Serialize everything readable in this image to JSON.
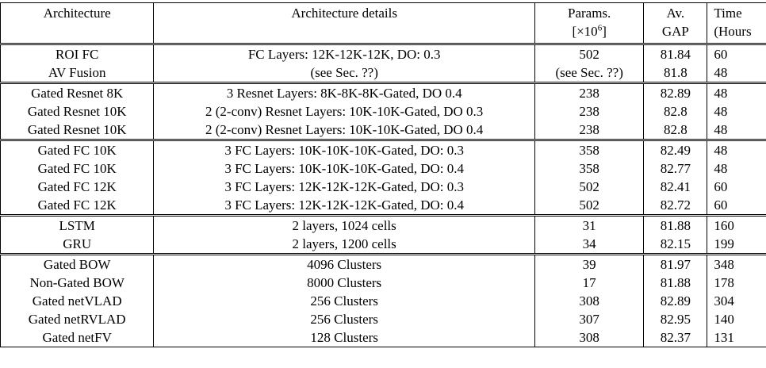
{
  "header": {
    "architecture": "Architecture",
    "details": "Architecture details",
    "params_line1": "Params.",
    "params_line2": "[×10",
    "params_sup": "6",
    "params_close": "]",
    "gap_line1": "Av.",
    "gap_line2": "GAP",
    "time_line1": "Time",
    "time_line2": "(Hours"
  },
  "groups": [
    [
      {
        "arch": "ROI FC",
        "details": "FC Layers: 12K-12K-12K, DO: 0.3",
        "params": "502",
        "gap": "81.84",
        "time": "60"
      },
      {
        "arch": "AV Fusion",
        "details": "(see Sec. ??)",
        "params": "(see Sec. ??)",
        "gap": "81.8",
        "time": "48"
      }
    ],
    [
      {
        "arch": "Gated Resnet 8K",
        "details": "3 Resnet Layers: 8K-8K-8K-Gated, DO 0.4",
        "params": "238",
        "gap": "82.89",
        "time": "48"
      },
      {
        "arch": "Gated Resnet 10K",
        "details": "2 (2-conv) Resnet Layers: 10K-10K-Gated, DO 0.3",
        "params": "238",
        "gap": "82.8",
        "time": "48"
      },
      {
        "arch": "Gated Resnet 10K",
        "details": "2 (2-conv) Resnet Layers: 10K-10K-Gated, DO 0.4",
        "params": "238",
        "gap": "82.8",
        "time": "48"
      }
    ],
    [
      {
        "arch": "Gated FC 10K",
        "details": "3 FC Layers: 10K-10K-10K-Gated, DO: 0.3",
        "params": "358",
        "gap": "82.49",
        "time": "48"
      },
      {
        "arch": "Gated FC 10K",
        "details": "3 FC Layers: 10K-10K-10K-Gated, DO: 0.4",
        "params": "358",
        "gap": "82.77",
        "time": "48"
      },
      {
        "arch": "Gated FC 12K",
        "details": "3 FC Layers: 12K-12K-12K-Gated, DO: 0.3",
        "params": "502",
        "gap": "82.41",
        "time": "60"
      },
      {
        "arch": "Gated FC 12K",
        "details": "3 FC Layers: 12K-12K-12K-Gated, DO: 0.4",
        "params": "502",
        "gap": "82.72",
        "time": "60"
      }
    ],
    [
      {
        "arch": "LSTM",
        "details": "2 layers, 1024 cells",
        "params": "31",
        "gap": "81.88",
        "time": "160"
      },
      {
        "arch": "GRU",
        "details": "2 layers, 1200 cells",
        "params": "34",
        "gap": "82.15",
        "time": "199"
      }
    ],
    [
      {
        "arch": "Gated BOW",
        "details": "4096 Clusters",
        "params": "39",
        "gap": "81.97",
        "time": "348"
      },
      {
        "arch": "Non-Gated BOW",
        "details": "8000 Clusters",
        "params": "17",
        "gap": "81.88",
        "time": "178"
      },
      {
        "arch": "Gated netVLAD",
        "details": "256 Clusters",
        "params": "308",
        "gap": "82.89",
        "time": "304"
      },
      {
        "arch": "Gated netRVLAD",
        "details": "256 Clusters",
        "params": "307",
        "gap": "82.95",
        "time": "140"
      },
      {
        "arch": "Gated netFV",
        "details": "128 Clusters",
        "params": "308",
        "gap": "82.37",
        "time": "131"
      }
    ]
  ]
}
